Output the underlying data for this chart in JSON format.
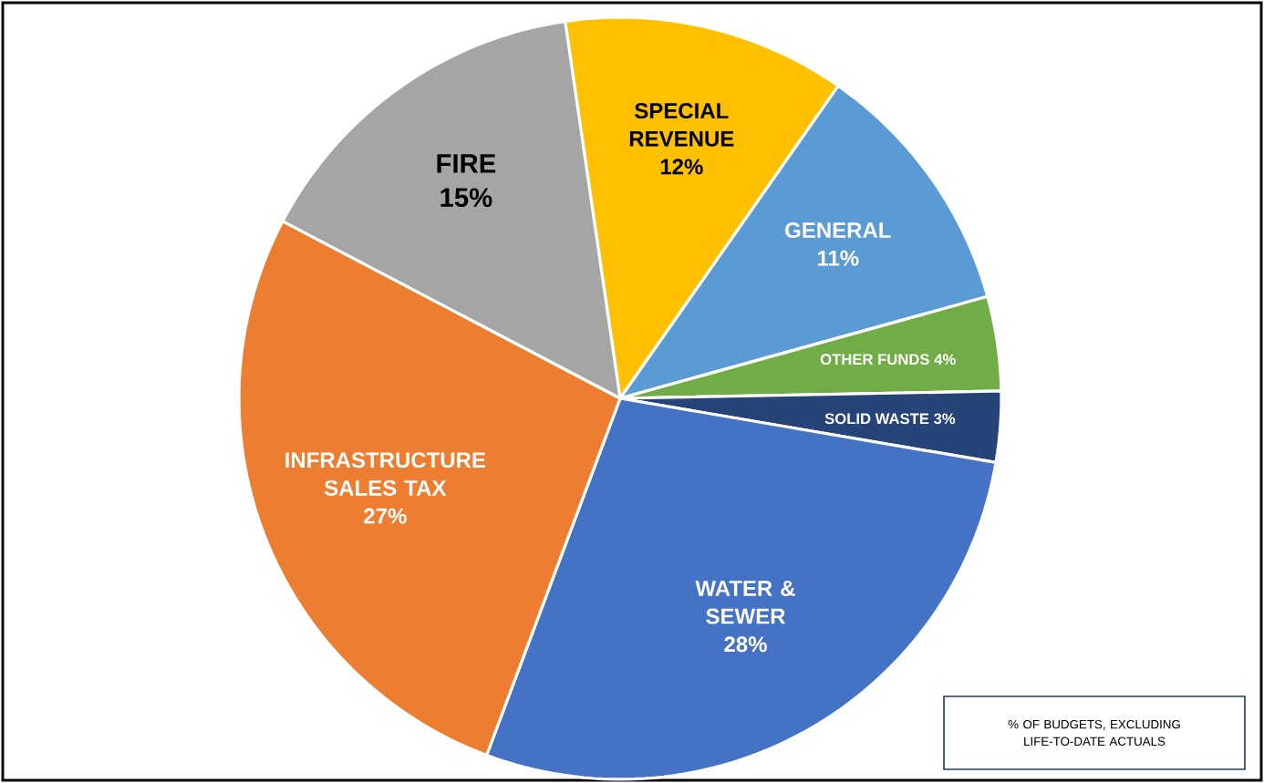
{
  "chart_data": {
    "type": "pie",
    "categories": [
      "SPECIAL REVENUE",
      "GENERAL",
      "OTHER FUNDS",
      "SOLID WASTE",
      "WATER & SEWER",
      "INFRASTRUCTURE SALES TAX",
      "FIRE"
    ],
    "values": [
      12,
      11,
      4,
      3,
      28,
      27,
      15
    ],
    "value_labels": [
      "12%",
      "11%",
      "4%",
      "3%",
      "28%",
      "27%",
      "15%"
    ],
    "colors": [
      "#ffc000",
      "#5b9bd5",
      "#70ad47",
      "#264478",
      "#4472c4",
      "#ed7d31",
      "#a5a5a5"
    ],
    "annotations": [
      "% OF BUDGETS, EXCLUDING LIFE-TO-DATE ACTUALS"
    ]
  }
}
